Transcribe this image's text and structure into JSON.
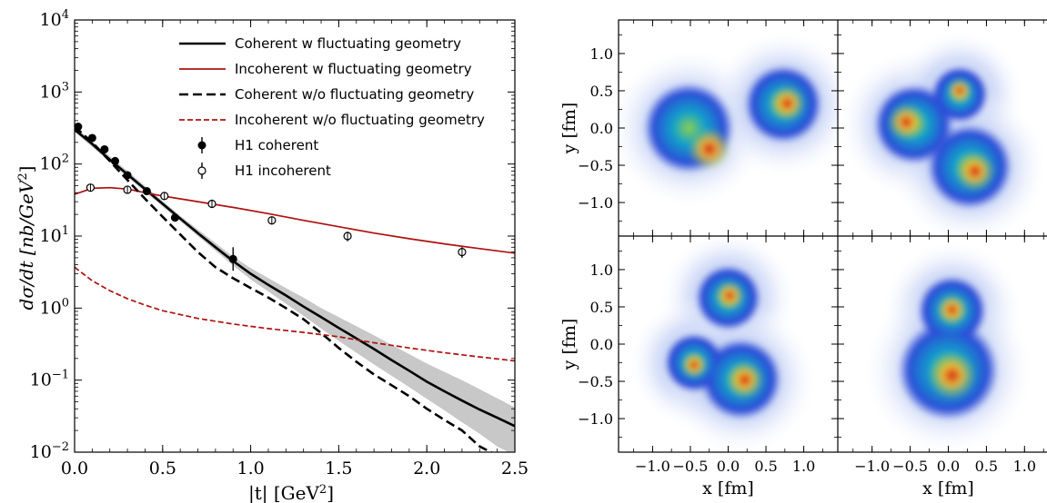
{
  "chart_data": [
    {
      "type": "line",
      "xlabel": "|t| [GeV",
      "xlabel_sup": "2",
      "xlabel_end": "]",
      "ylabel": "dσ/dt [nb/GeV",
      "ylabel_sup": "2",
      "ylabel_end": "]",
      "xlim": [
        0,
        2.5
      ],
      "ylim_log10": [
        -2,
        4
      ],
      "yscale": "log",
      "grid": false,
      "legend_placement": "top-right",
      "x_ticks": [
        {
          "value": 0.0,
          "label": "0.0"
        },
        {
          "value": 0.5,
          "label": "0.5"
        },
        {
          "value": 1.0,
          "label": "1.0"
        },
        {
          "value": 1.5,
          "label": "1.5"
        },
        {
          "value": 2.0,
          "label": "2.0"
        },
        {
          "value": 2.5,
          "label": "2.5"
        }
      ],
      "y_ticks": [
        {
          "exp": -2,
          "label": "10",
          "sup": "−2"
        },
        {
          "exp": -1,
          "label": "10",
          "sup": "−1"
        },
        {
          "exp": 0,
          "label": "10",
          "sup": "0"
        },
        {
          "exp": 1,
          "label": "10",
          "sup": "1"
        },
        {
          "exp": 2,
          "label": "10",
          "sup": "2"
        },
        {
          "exp": 3,
          "label": "10",
          "sup": "3"
        },
        {
          "exp": 4,
          "label": "10",
          "sup": "4"
        }
      ],
      "series": [
        {
          "name": "Coherent w fluctuating geometry",
          "color": "#000000",
          "style": "solid",
          "x": [
            0,
            0.1,
            0.2,
            0.3,
            0.4,
            0.5,
            0.6,
            0.7,
            0.8,
            0.9,
            1.0,
            1.1,
            1.2,
            1.3,
            1.4,
            1.5,
            1.6,
            1.7,
            1.8,
            1.9,
            2.0,
            2.1,
            2.2,
            2.3,
            2.4,
            2.5
          ],
          "y": [
            300,
            190,
            115,
            72,
            45,
            28,
            17.5,
            11,
            7,
            4.5,
            3,
            2.1,
            1.5,
            1.05,
            0.75,
            0.53,
            0.38,
            0.27,
            0.19,
            0.135,
            0.095,
            0.07,
            0.052,
            0.039,
            0.03,
            0.023
          ]
        },
        {
          "name": "Incoherent w fluctuating geometry",
          "color": "#b01010",
          "style": "solid",
          "x": [
            0,
            0.1,
            0.2,
            0.3,
            0.4,
            0.5,
            0.7,
            0.9,
            1.1,
            1.3,
            1.5,
            1.7,
            1.9,
            2.1,
            2.3,
            2.5
          ],
          "y": [
            38,
            46,
            47,
            45,
            40,
            36,
            30,
            25,
            20.5,
            16.5,
            13.5,
            11,
            9.2,
            7.8,
            6.7,
            5.8
          ]
        },
        {
          "name": "Coherent w/o fluctuating geometry",
          "color": "#000000",
          "style": "dashed",
          "x": [
            0,
            0.1,
            0.2,
            0.3,
            0.4,
            0.5,
            0.6,
            0.7,
            0.8,
            0.9,
            1.0,
            1.1,
            1.2,
            1.3,
            1.4,
            1.5,
            1.6,
            1.7,
            1.8,
            1.9,
            2.0,
            2.1,
            2.2,
            2.3,
            2.4,
            2.5
          ],
          "y": [
            330,
            200,
            110,
            60,
            33,
            18.5,
            10.5,
            6,
            3.7,
            2.6,
            1.9,
            1.4,
            1.0,
            0.7,
            0.45,
            0.28,
            0.18,
            0.12,
            0.085,
            0.06,
            0.04,
            0.028,
            0.02,
            0.012,
            0.009,
            0.007
          ]
        },
        {
          "name": "Incoherent w/o fluctuating geometry",
          "color": "#b01010",
          "style": "dashed",
          "x": [
            0,
            0.1,
            0.2,
            0.3,
            0.4,
            0.5,
            0.7,
            0.9,
            1.1,
            1.3,
            1.5,
            1.7,
            1.9,
            2.1,
            2.3,
            2.5
          ],
          "y": [
            3.7,
            2.4,
            1.75,
            1.35,
            1.1,
            0.92,
            0.72,
            0.6,
            0.52,
            0.46,
            0.4,
            0.33,
            0.28,
            0.24,
            0.21,
            0.185
          ]
        }
      ],
      "band": {
        "x": [
          0,
          0.3,
          0.6,
          0.9,
          1.0,
          1.1,
          1.2,
          1.3,
          1.4,
          1.5,
          1.6,
          1.7,
          1.8,
          1.9,
          2.0,
          2.1,
          2.2,
          2.3,
          2.4,
          2.5
        ],
        "upper": [
          330,
          80,
          19,
          5.2,
          3.6,
          2.6,
          1.9,
          1.4,
          1.0,
          0.75,
          0.56,
          0.42,
          0.31,
          0.23,
          0.17,
          0.13,
          0.1,
          0.075,
          0.056,
          0.042
        ],
        "lower": [
          280,
          66,
          16,
          3.9,
          2.5,
          1.7,
          1.15,
          0.78,
          0.52,
          0.35,
          0.24,
          0.165,
          0.115,
          0.08,
          0.055,
          0.038,
          0.026,
          0.018,
          0.012,
          0.009
        ],
        "color": "#c8c8c8"
      },
      "points": [
        {
          "name": "H1 coherent",
          "marker": "filled",
          "x": [
            0.02,
            0.1,
            0.17,
            0.23,
            0.3,
            0.41,
            0.57,
            0.9
          ],
          "y": [
            330,
            230,
            160,
            110,
            70,
            42,
            18,
            4.8
          ],
          "yerr_low": [
            0,
            0,
            0,
            0,
            0,
            0,
            0,
            1.5
          ],
          "yerr_high": [
            0,
            0,
            0,
            0,
            0,
            0,
            0,
            2.2
          ]
        },
        {
          "name": "H1 incoherent",
          "marker": "open",
          "x": [
            0.09,
            0.3,
            0.51,
            0.78,
            1.12,
            1.55,
            2.2
          ],
          "y": [
            47,
            44,
            36,
            28,
            16.5,
            10,
            6
          ],
          "yerr_low": [
            4,
            3.5,
            3,
            2.5,
            2,
            1.5,
            1
          ],
          "yerr_high": [
            4,
            3.5,
            3,
            2.5,
            2,
            1.5,
            1
          ]
        }
      ]
    },
    {
      "type": "heatmap",
      "panels_layout": "2x2",
      "xlabel": "x [fm]",
      "ylabel": "y [fm]",
      "xlim": [
        -1.45,
        1.45
      ],
      "ylim": [
        -1.45,
        1.45
      ],
      "tick_values": [
        -1.0,
        -0.5,
        0.0,
        0.5,
        1.0
      ],
      "tick_labels": [
        "−1.0",
        "−0.5",
        "0.0",
        "0.5",
        "1.0"
      ],
      "colormap": [
        "#ffffff",
        "#c8d4f6",
        "#2a4ed8",
        "#11a6c9",
        "#8fd24a",
        "#f5b52e",
        "#d81e10"
      ],
      "panels": [
        {
          "blobs": [
            {
              "x": -0.52,
              "y": 0.0,
              "r": 0.52,
              "peak": [
                -0.25,
                -0.28
              ]
            },
            {
              "x": 0.73,
              "y": 0.32,
              "r": 0.44,
              "peak": [
                0.78,
                0.33
              ]
            }
          ]
        },
        {
          "blobs": [
            {
              "x": -0.45,
              "y": 0.05,
              "r": 0.45,
              "peak": [
                -0.55,
                0.08
              ]
            },
            {
              "x": 0.15,
              "y": 0.45,
              "r": 0.3,
              "peak": [
                0.15,
                0.5
              ]
            },
            {
              "x": 0.28,
              "y": -0.52,
              "r": 0.48,
              "peak": [
                0.35,
                -0.58
              ]
            }
          ]
        },
        {
          "blobs": [
            {
              "x": 0.0,
              "y": 0.62,
              "r": 0.36,
              "peak": [
                0.02,
                0.65
              ]
            },
            {
              "x": -0.45,
              "y": -0.25,
              "r": 0.32,
              "peak": [
                -0.45,
                -0.28
              ]
            },
            {
              "x": 0.17,
              "y": -0.47,
              "r": 0.46,
              "peak": [
                0.22,
                -0.48
              ]
            }
          ]
        },
        {
          "blobs": [
            {
              "x": 0.05,
              "y": 0.45,
              "r": 0.38,
              "peak": [
                0.05,
                0.46
              ]
            },
            {
              "x": 0.0,
              "y": -0.35,
              "r": 0.58,
              "peak": [
                0.05,
                -0.42
              ]
            }
          ]
        }
      ]
    }
  ]
}
